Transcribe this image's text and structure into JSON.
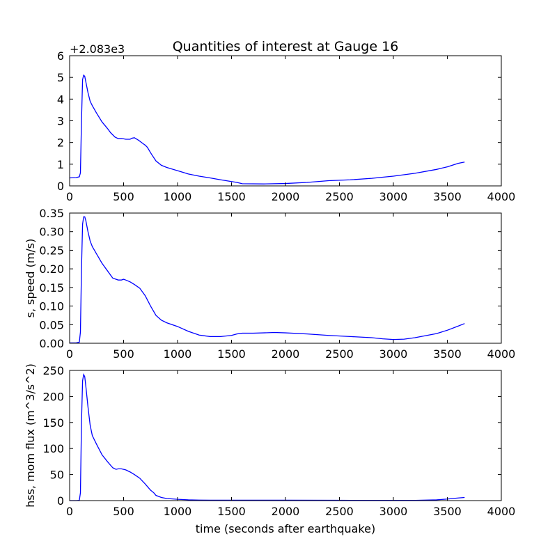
{
  "chart_data": {
    "title": "Quantities of interest at Gauge 16",
    "xlabel": "time (seconds after earthquake)",
    "line_color": "#0000ff",
    "panels": [
      {
        "type": "line",
        "ylabel": "",
        "offset_text": "+2.083e3",
        "xlim": [
          0,
          4000
        ],
        "ylim": [
          0,
          6
        ],
        "xticks": [
          0,
          500,
          1000,
          1500,
          2000,
          2500,
          3000,
          3500,
          4000
        ],
        "yticks": [
          0,
          1,
          2,
          3,
          4,
          5,
          6
        ],
        "ytick_labels": [
          "0",
          "1",
          "2",
          "3",
          "4",
          "5",
          "6"
        ],
        "series": [
          {
            "x": [
              0,
              60,
              90,
              100,
              110,
              120,
              130,
              140,
              150,
              170,
              190,
              210,
              250,
              300,
              350,
              380,
              420,
              450,
              480,
              500,
              520,
              560,
              580,
              600,
              640,
              680,
              700,
              720,
              760,
              800,
              850,
              900,
              1000,
              1100,
              1200,
              1300,
              1400,
              1500,
              1550,
              1600,
              1800,
              2000,
              2200,
              2400,
              2500,
              2600,
              2800,
              3000,
              3200,
              3400,
              3500,
              3550,
              3600,
              3660
            ],
            "y": [
              0.37,
              0.38,
              0.42,
              0.6,
              3.0,
              4.9,
              5.1,
              5.05,
              4.8,
              4.3,
              3.9,
              3.7,
              3.35,
              2.95,
              2.65,
              2.45,
              2.25,
              2.18,
              2.18,
              2.17,
              2.15,
              2.15,
              2.2,
              2.22,
              2.1,
              1.95,
              1.88,
              1.78,
              1.45,
              1.15,
              0.95,
              0.85,
              0.7,
              0.55,
              0.45,
              0.37,
              0.28,
              0.2,
              0.16,
              0.1,
              0.09,
              0.11,
              0.16,
              0.24,
              0.26,
              0.28,
              0.35,
              0.45,
              0.58,
              0.76,
              0.88,
              0.96,
              1.04,
              1.1
            ]
          }
        ]
      },
      {
        "type": "line",
        "ylabel": "s, speed (m/s)",
        "offset_text": "",
        "xlim": [
          0,
          4000
        ],
        "ylim": [
          0,
          0.35
        ],
        "xticks": [
          0,
          500,
          1000,
          1500,
          2000,
          2500,
          3000,
          3500,
          4000
        ],
        "yticks": [
          0,
          0.05,
          0.1,
          0.15,
          0.2,
          0.25,
          0.3,
          0.35
        ],
        "ytick_labels": [
          "0.00",
          "0.05",
          "0.10",
          "0.15",
          "0.20",
          "0.25",
          "0.30",
          "0.35"
        ],
        "series": [
          {
            "x": [
              0,
              60,
              90,
              100,
              110,
              120,
              130,
              140,
              150,
              170,
              190,
              210,
              250,
              300,
              350,
              400,
              450,
              480,
              500,
              520,
              560,
              600,
              650,
              700,
              750,
              800,
              850,
              900,
              1000,
              1100,
              1200,
              1250,
              1300,
              1400,
              1500,
              1550,
              1600,
              1700,
              1800,
              1900,
              2000,
              2200,
              2400,
              2600,
              2800,
              2900,
              3000,
              3100,
              3200,
              3400,
              3500,
              3600,
              3660
            ],
            "y": [
              0.001,
              0.001,
              0.003,
              0.03,
              0.2,
              0.32,
              0.34,
              0.34,
              0.33,
              0.3,
              0.275,
              0.26,
              0.24,
              0.215,
              0.195,
              0.175,
              0.17,
              0.17,
              0.172,
              0.17,
              0.165,
              0.158,
              0.148,
              0.128,
              0.1,
              0.075,
              0.062,
              0.055,
              0.045,
              0.032,
              0.022,
              0.02,
              0.018,
              0.018,
              0.021,
              0.025,
              0.027,
              0.027,
              0.028,
              0.029,
              0.028,
              0.025,
              0.021,
              0.018,
              0.015,
              0.012,
              0.01,
              0.011,
              0.015,
              0.026,
              0.035,
              0.046,
              0.053
            ]
          }
        ]
      },
      {
        "type": "line",
        "ylabel": "hss, mom flux (m^3/s^2)",
        "offset_text": "",
        "xlim": [
          0,
          4000
        ],
        "ylim": [
          0,
          250
        ],
        "xticks": [
          0,
          500,
          1000,
          1500,
          2000,
          2500,
          3000,
          3500,
          4000
        ],
        "yticks": [
          0,
          50,
          100,
          150,
          200,
          250
        ],
        "ytick_labels": [
          "0",
          "50",
          "100",
          "150",
          "200",
          "250"
        ],
        "series": [
          {
            "x": [
              0,
              60,
              90,
              100,
              110,
              120,
              130,
              140,
              150,
              170,
              190,
              210,
              250,
              300,
              350,
              400,
              430,
              450,
              480,
              500,
              520,
              560,
              600,
              650,
              700,
              750,
              780,
              800,
              850,
              900,
              1000,
              1100,
              1200,
              1300,
              1500,
              2000,
              2500,
              3000,
              3200,
              3400,
              3500,
              3600,
              3660
            ],
            "y": [
              0,
              0,
              0.5,
              15,
              150,
              230,
              242,
              238,
              220,
              180,
              145,
              125,
              108,
              88,
              75,
              63,
              60,
              61,
              61,
              60,
              59,
              55,
              50,
              43,
              32,
              20,
              15,
              10,
              6,
              4,
              2.5,
              1.5,
              1,
              0.8,
              0.8,
              0.8,
              0.6,
              0.4,
              0.5,
              1.5,
              3,
              5,
              6
            ]
          }
        ]
      }
    ]
  }
}
